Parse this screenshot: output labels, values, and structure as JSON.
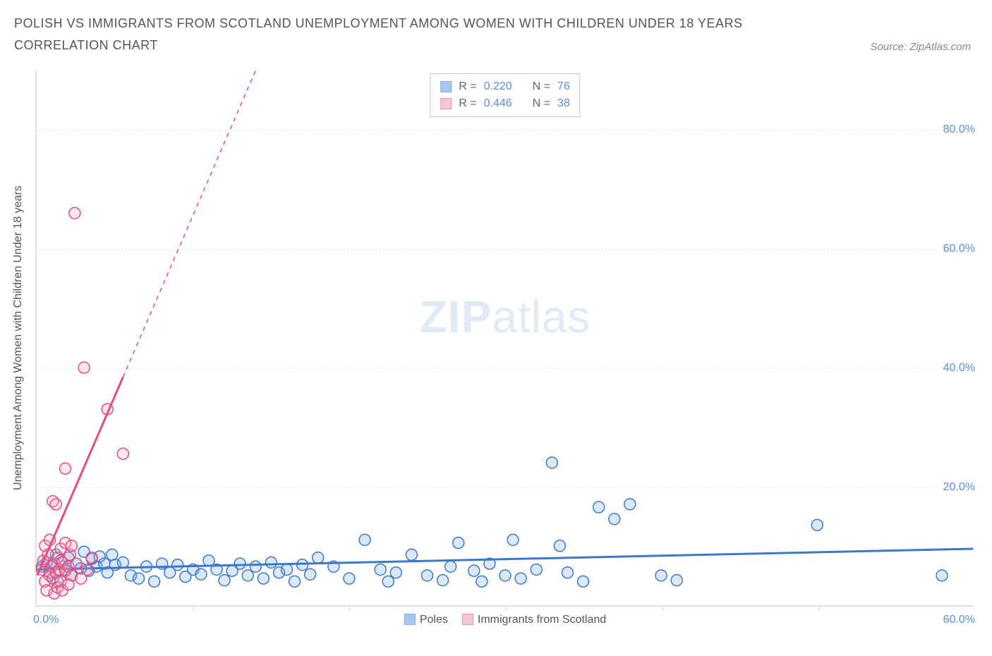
{
  "title": "POLISH VS IMMIGRANTS FROM SCOTLAND UNEMPLOYMENT AMONG WOMEN WITH CHILDREN UNDER 18 YEARS CORRELATION CHART",
  "source": "Source: ZipAtlas.com",
  "watermark_a": "ZIP",
  "watermark_b": "atlas",
  "chart": {
    "type": "scatter",
    "yaxis_label": "Unemployment Among Women with Children Under 18 years",
    "xlim": [
      0,
      60
    ],
    "ylim": [
      0,
      90
    ],
    "xtick_positions": [
      10,
      20,
      30,
      40,
      50
    ],
    "ytick_labels": [
      {
        "y": 20,
        "text": "20.0%"
      },
      {
        "y": 40,
        "text": "40.0%"
      },
      {
        "y": 60,
        "text": "60.0%"
      },
      {
        "y": 80,
        "text": "80.0%"
      }
    ],
    "x_label_min": "0.0%",
    "x_label_max": "60.0%",
    "marker_radius": 8,
    "marker_fill_opacity": 0.25,
    "marker_stroke_width": 1.5,
    "trend_line_width": 3,
    "background_color": "#ffffff",
    "grid_color": "#e8e8e8",
    "series": [
      {
        "id": "poles",
        "label": "Poles",
        "color": "#6da3e6",
        "stroke": "#3b78cc",
        "R": "0.220",
        "N": "76",
        "trend": {
          "x1": 0,
          "y1": 6.0,
          "x2": 60,
          "y2": 9.5
        },
        "trend_dash_from_x": null,
        "points": [
          [
            0.3,
            6.5
          ],
          [
            0.6,
            7.2
          ],
          [
            0.8,
            5.5
          ],
          [
            1.0,
            6.8
          ],
          [
            1.2,
            8.5
          ],
          [
            1.3,
            4.0
          ],
          [
            1.5,
            7.5
          ],
          [
            1.8,
            6.0
          ],
          [
            2.0,
            8.0
          ],
          [
            2.2,
            5.0
          ],
          [
            2.5,
            7.0
          ],
          [
            2.8,
            6.2
          ],
          [
            3.0,
            9.0
          ],
          [
            3.3,
            5.8
          ],
          [
            3.5,
            7.8
          ],
          [
            3.8,
            6.5
          ],
          [
            4.0,
            8.2
          ],
          [
            4.3,
            7.0
          ],
          [
            4.5,
            5.5
          ],
          [
            4.8,
            8.5
          ],
          [
            5.0,
            6.8
          ],
          [
            5.5,
            7.2
          ],
          [
            6.0,
            5.0
          ],
          [
            6.5,
            4.5
          ],
          [
            7.0,
            6.5
          ],
          [
            7.5,
            4.0
          ],
          [
            8.0,
            7.0
          ],
          [
            8.5,
            5.5
          ],
          [
            9.0,
            6.8
          ],
          [
            9.5,
            4.8
          ],
          [
            10.0,
            6.0
          ],
          [
            10.5,
            5.2
          ],
          [
            11.0,
            7.5
          ],
          [
            11.5,
            6.0
          ],
          [
            12.0,
            4.2
          ],
          [
            12.5,
            5.8
          ],
          [
            13.0,
            7.0
          ],
          [
            13.5,
            5.0
          ],
          [
            14.0,
            6.5
          ],
          [
            14.5,
            4.5
          ],
          [
            15.0,
            7.2
          ],
          [
            15.5,
            5.5
          ],
          [
            16.0,
            6.0
          ],
          [
            16.5,
            4.0
          ],
          [
            17.0,
            6.8
          ],
          [
            17.5,
            5.2
          ],
          [
            18.0,
            8.0
          ],
          [
            19.0,
            6.5
          ],
          [
            20.0,
            4.5
          ],
          [
            21.0,
            11.0
          ],
          [
            22.0,
            6.0
          ],
          [
            22.5,
            4.0
          ],
          [
            23.0,
            5.5
          ],
          [
            24.0,
            8.5
          ],
          [
            25.0,
            5.0
          ],
          [
            26.0,
            4.2
          ],
          [
            26.5,
            6.5
          ],
          [
            27.0,
            10.5
          ],
          [
            28.0,
            5.8
          ],
          [
            28.5,
            4.0
          ],
          [
            29.0,
            7.0
          ],
          [
            30.0,
            5.0
          ],
          [
            30.5,
            11.0
          ],
          [
            31.0,
            4.5
          ],
          [
            32.0,
            6.0
          ],
          [
            33.0,
            24.0
          ],
          [
            33.5,
            10.0
          ],
          [
            34.0,
            5.5
          ],
          [
            35.0,
            4.0
          ],
          [
            36.0,
            16.5
          ],
          [
            37.0,
            14.5
          ],
          [
            38.0,
            17.0
          ],
          [
            40.0,
            5.0
          ],
          [
            41.0,
            4.2
          ],
          [
            50.0,
            13.5
          ],
          [
            58.0,
            5.0
          ]
        ]
      },
      {
        "id": "scotland",
        "label": "Immigrants from Scotland",
        "color": "#f5a0b8",
        "stroke": "#e94b7e",
        "R": "0.446",
        "N": "38",
        "trend": {
          "x1": 0,
          "y1": 5.0,
          "x2": 14,
          "y2": 90
        },
        "trend_dash_from_x": 5.5,
        "points": [
          [
            0.3,
            6.0
          ],
          [
            0.4,
            7.5
          ],
          [
            0.5,
            10.0
          ],
          [
            0.5,
            4.0
          ],
          [
            0.6,
            2.5
          ],
          [
            0.7,
            8.5
          ],
          [
            0.8,
            5.0
          ],
          [
            0.8,
            11.0
          ],
          [
            0.9,
            6.5
          ],
          [
            1.0,
            4.5
          ],
          [
            1.0,
            17.5
          ],
          [
            1.1,
            7.0
          ],
          [
            1.1,
            2.0
          ],
          [
            1.2,
            5.5
          ],
          [
            1.2,
            17.0
          ],
          [
            1.3,
            8.0
          ],
          [
            1.3,
            3.0
          ],
          [
            1.4,
            6.0
          ],
          [
            1.5,
            4.0
          ],
          [
            1.5,
            9.5
          ],
          [
            1.6,
            7.2
          ],
          [
            1.6,
            2.5
          ],
          [
            1.8,
            5.8
          ],
          [
            1.8,
            10.5
          ],
          [
            1.8,
            23.0
          ],
          [
            2.0,
            6.5
          ],
          [
            2.0,
            3.5
          ],
          [
            2.1,
            8.5
          ],
          [
            2.2,
            5.0
          ],
          [
            2.2,
            10.0
          ],
          [
            2.4,
            66.0
          ],
          [
            2.5,
            7.0
          ],
          [
            2.8,
            4.5
          ],
          [
            3.0,
            40.0
          ],
          [
            3.2,
            6.0
          ],
          [
            4.5,
            33.0
          ],
          [
            5.5,
            25.5
          ],
          [
            3.5,
            8.0
          ]
        ]
      }
    ],
    "legend_label_R": "R =",
    "legend_label_N": "N ="
  }
}
